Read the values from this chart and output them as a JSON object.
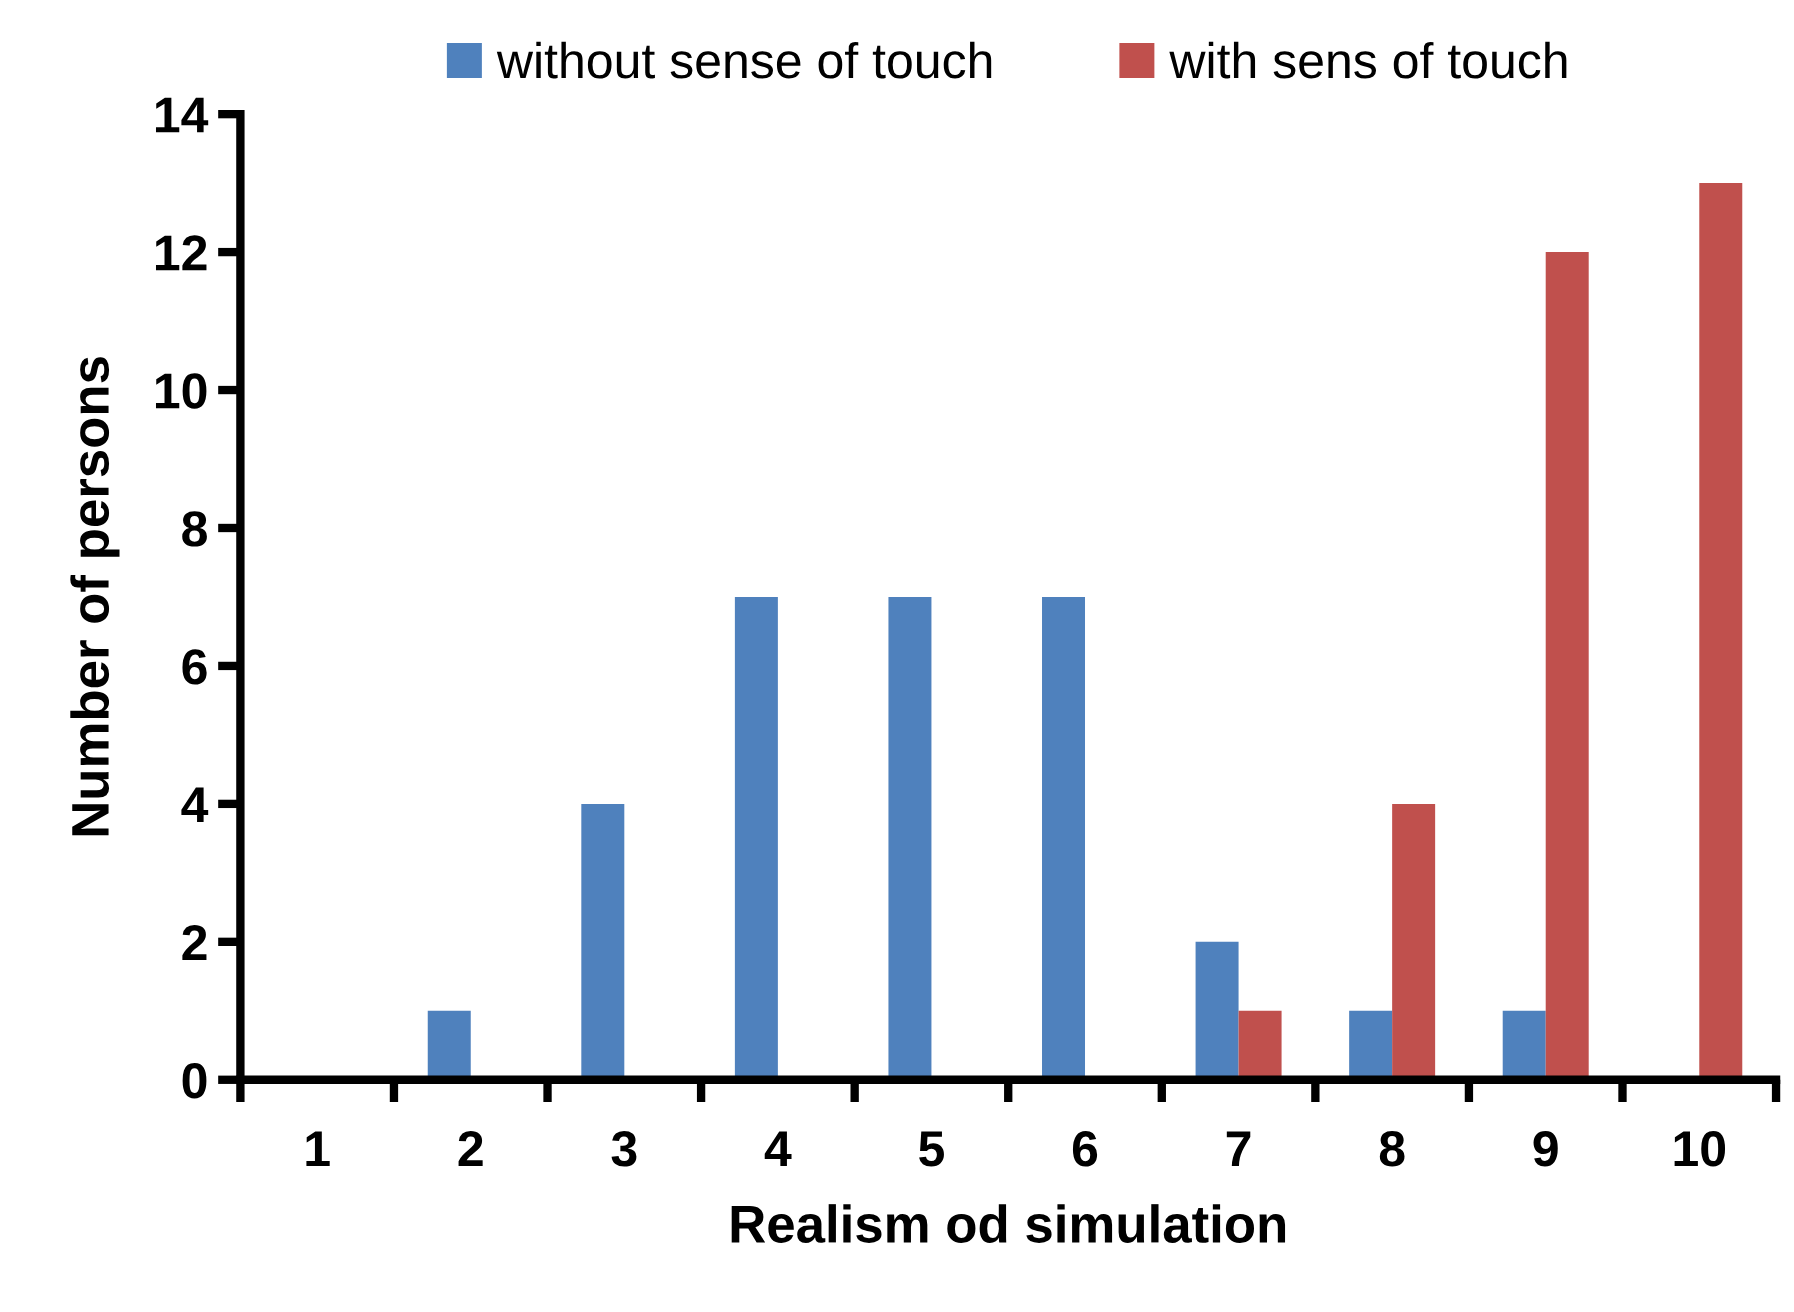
{
  "chart_data": {
    "type": "bar",
    "xlabel": "Realism od simulation",
    "ylabel": "Number of persons",
    "categories": [
      "1",
      "2",
      "3",
      "4",
      "5",
      "6",
      "7",
      "8",
      "9",
      "10"
    ],
    "series": [
      {
        "name": "without sense of touch",
        "color": "#4f81bd",
        "values": [
          0,
          1,
          4,
          7,
          7,
          7,
          2,
          1,
          1,
          0
        ]
      },
      {
        "name": "with sens of touch",
        "color": "#c0504d",
        "values": [
          0,
          0,
          0,
          0,
          0,
          0,
          1,
          4,
          12,
          13
        ]
      }
    ],
    "ylim": [
      0,
      14
    ],
    "yticks": [
      0,
      2,
      4,
      6,
      8,
      10,
      12,
      14
    ],
    "grid": false,
    "legend": "top"
  }
}
